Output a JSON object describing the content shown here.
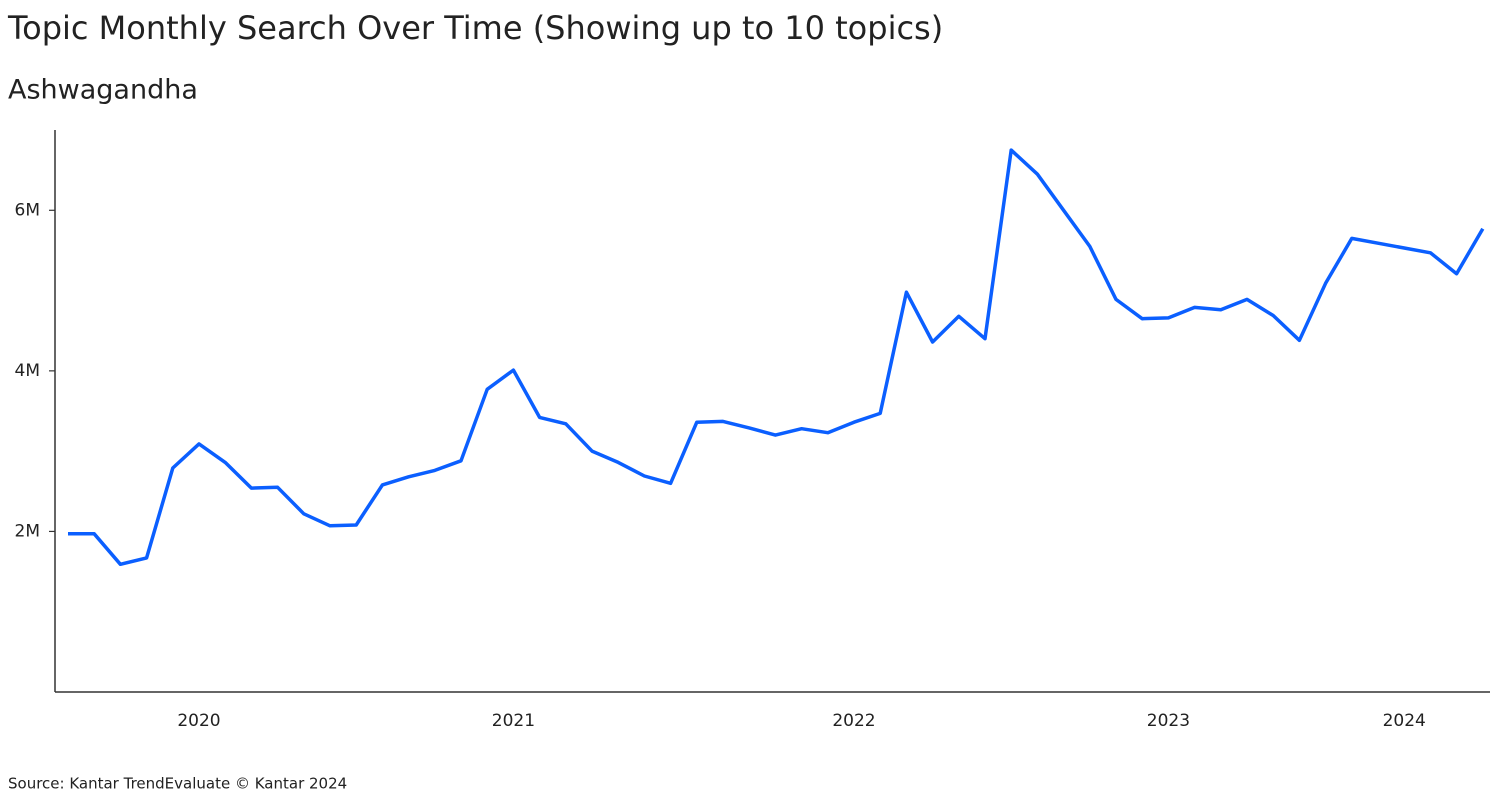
{
  "chart_data": {
    "type": "line",
    "title": "Topic Monthly Search Over Time (Showing up to 10 topics)",
    "subtitle": "Ashwagandha",
    "source": "Source: Kantar TrendEvaluate © Kantar 2024",
    "categories": [
      null,
      null,
      null,
      null,
      null,
      "2020",
      null,
      null,
      null,
      null,
      null,
      null,
      null,
      null,
      null,
      null,
      null,
      "2021",
      null,
      null,
      null,
      null,
      null,
      null,
      null,
      null,
      null,
      null,
      null,
      null,
      "2022",
      null,
      null,
      null,
      null,
      null,
      null,
      null,
      null,
      null,
      null,
      null,
      "2023",
      null,
      null,
      null,
      null,
      null,
      null,
      null,
      null,
      "2024",
      null,
      null,
      null
    ],
    "series": [
      {
        "name": "Ashwagandha",
        "color": "#0b5fff",
        "values": [
          1970000,
          1970000,
          1590000,
          1670000,
          2790000,
          3090000,
          2860000,
          2540000,
          2550000,
          2220000,
          2070000,
          2080000,
          2580000,
          2680000,
          2760000,
          2880000,
          3770000,
          4010000,
          3420000,
          3340000,
          3000000,
          2860000,
          2690000,
          2600000,
          3360000,
          3370000,
          3290000,
          3200000,
          3280000,
          3230000,
          3360000,
          3470000,
          4980000,
          4360000,
          4680000,
          4400000,
          6750000,
          6450000,
          6000000,
          5550000,
          4890000,
          4650000,
          4660000,
          4790000,
          4760000,
          4890000,
          4690000,
          4380000,
          5090000,
          5650000,
          5590000,
          5530000,
          5470000,
          5210000,
          5770000
        ]
      }
    ],
    "ylim": [
      0,
      7000000
    ],
    "yticks": [
      {
        "value": 2000000,
        "label": "2M"
      },
      {
        "value": 4000000,
        "label": "4M"
      },
      {
        "value": 6000000,
        "label": "6M"
      }
    ],
    "grid": false
  }
}
